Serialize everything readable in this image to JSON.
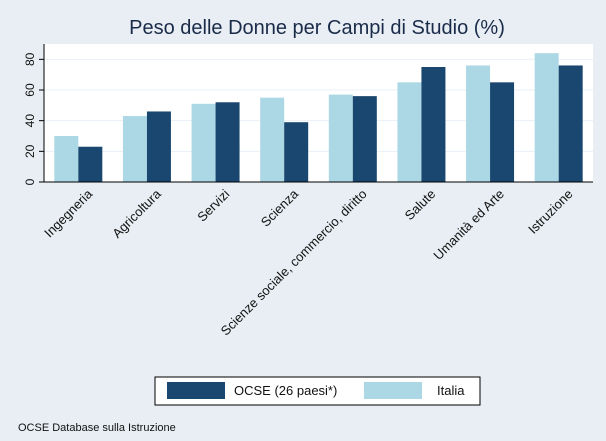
{
  "chart_data": {
    "type": "bar",
    "title": "Peso delle Donne per Campi di Studio (%)",
    "xlabel": "",
    "ylabel": "",
    "ylim": [
      0,
      90
    ],
    "yticks": [
      0,
      20,
      40,
      60,
      80
    ],
    "grid": true,
    "legend_position": "bottom",
    "categories": [
      "Ingegneria",
      "Agricoltura",
      "Servizi",
      "Scienza",
      "Scienze sociale, commercio, diritto",
      "Salute",
      "Umanità ed Arte",
      "Istruzione"
    ],
    "series": [
      {
        "name": "Italia",
        "color": "#acd8e6",
        "values": [
          30,
          43,
          51,
          55,
          57,
          65,
          76,
          84
        ]
      },
      {
        "name": "OCSE (26 paesi*)",
        "color": "#1a476f",
        "values": [
          23,
          46,
          52,
          39,
          56,
          75,
          65,
          76
        ]
      }
    ],
    "legend_order": [
      "OCSE (26 paesi*)",
      "Italia"
    ],
    "note": "OCSE Database sulla Istruzione"
  },
  "colors": {
    "background": "#e8eef3",
    "plot_background": "#ffffff",
    "title": "#1a2b4a",
    "gridline": "#eaf1f6"
  }
}
